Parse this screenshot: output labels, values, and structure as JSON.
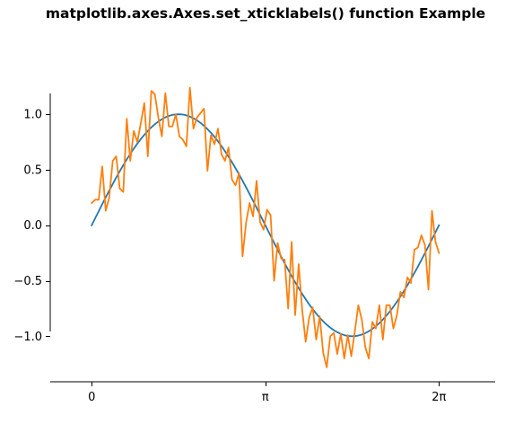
{
  "chart_data": {
    "type": "line",
    "title": "matplotlib.axes.Axes.set_xticklabels() function Example",
    "xlabel": "",
    "ylabel": "",
    "xlim": [
      -0.75,
      7.3
    ],
    "ylim": [
      -1.41,
      1.6
    ],
    "grid": false,
    "xticks": [
      {
        "value": 0,
        "label": "0"
      },
      {
        "value": 3.1416,
        "label": "π"
      },
      {
        "value": 6.2832,
        "label": "2π"
      }
    ],
    "yticks": [
      {
        "value": -1.0,
        "label": "−1.0"
      },
      {
        "value": -0.5,
        "label": "−0.5"
      },
      {
        "value": 0.0,
        "label": "0.0"
      },
      {
        "value": 0.5,
        "label": "0.5"
      },
      {
        "value": 1.0,
        "label": "1.0"
      }
    ],
    "series": [
      {
        "color": "#1f77b4",
        "x_range": [
          0,
          6.2832
        ],
        "y": [
          0.0,
          0.0634,
          0.1266,
          0.1893,
          0.2511,
          0.312,
          0.3717,
          0.4298,
          0.4862,
          0.5406,
          0.5929,
          0.6428,
          0.6901,
          0.7346,
          0.7761,
          0.8146,
          0.8497,
          0.8815,
          0.9096,
          0.9341,
          0.9549,
          0.9718,
          0.9848,
          0.9938,
          0.9989,
          0.9999,
          0.9969,
          0.9898,
          0.9788,
          0.9638,
          0.945,
          0.9224,
          0.896,
          0.866,
          0.8326,
          0.7958,
          0.7557,
          0.7127,
          0.6668,
          0.6182,
          0.5671,
          0.5137,
          0.4582,
          0.4009,
          0.342,
          0.2817,
          0.2203,
          0.158,
          0.0951,
          0.0317,
          -0.0317,
          -0.0951,
          -0.158,
          -0.2203,
          -0.2817,
          -0.342,
          -0.4009,
          -0.4582,
          -0.5137,
          -0.5671,
          -0.6182,
          -0.6668,
          -0.7127,
          -0.7557,
          -0.7958,
          -0.8326,
          -0.866,
          -0.896,
          -0.9224,
          -0.945,
          -0.9638,
          -0.9788,
          -0.9898,
          -0.9969,
          -0.9999,
          -0.9989,
          -0.9938,
          -0.9848,
          -0.9718,
          -0.9549,
          -0.9341,
          -0.9096,
          -0.8815,
          -0.8497,
          -0.8146,
          -0.7761,
          -0.7346,
          -0.6901,
          -0.6428,
          -0.5929,
          -0.5406,
          -0.4862,
          -0.4298,
          -0.3717,
          -0.312,
          -0.2511,
          -0.1893,
          -0.1266,
          -0.0634,
          0.0
        ]
      },
      {
        "color": "#ff7f0e",
        "x_range": [
          0,
          6.2832
        ],
        "y": [
          0.2,
          0.23,
          0.23,
          0.53,
          0.13,
          0.25,
          0.58,
          0.62,
          0.33,
          0.3,
          0.96,
          0.58,
          0.85,
          0.75,
          0.92,
          1.1,
          0.62,
          1.21,
          1.18,
          0.97,
          0.8,
          1.19,
          0.89,
          0.89,
          1.0,
          0.8,
          0.77,
          0.71,
          1.24,
          0.87,
          0.97,
          1.01,
          1.05,
          0.49,
          0.81,
          0.73,
          0.87,
          0.64,
          0.58,
          0.7,
          0.41,
          0.36,
          0.47,
          -0.28,
          0.02,
          0.2,
          0.08,
          0.4,
          0.03,
          -0.04,
          0.14,
          0.09,
          -0.5,
          -0.16,
          -0.3,
          -0.31,
          -0.75,
          -0.15,
          -0.81,
          -0.35,
          -0.76,
          -1.05,
          -0.83,
          -0.74,
          -1.03,
          -0.82,
          -1.15,
          -1.28,
          -1.0,
          -0.97,
          -1.16,
          -0.98,
          -1.2,
          -0.99,
          -1.18,
          -0.96,
          -0.72,
          -0.85,
          -1.1,
          -1.2,
          -0.87,
          -0.93,
          -0.72,
          -1.03,
          -0.72,
          -0.72,
          -0.93,
          -0.81,
          -0.6,
          -0.65,
          -0.47,
          -0.52,
          -0.22,
          -0.2,
          -0.09,
          -0.18,
          -0.58,
          0.13,
          -0.15,
          -0.25
        ]
      }
    ]
  }
}
